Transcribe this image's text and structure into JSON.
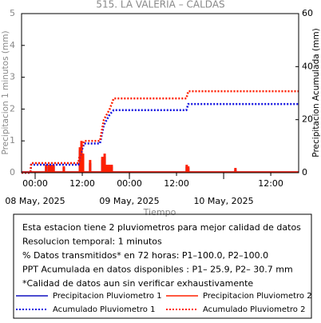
{
  "chart_data": {
    "type": "bar",
    "title": "515. LA VALERIA – CALDAS",
    "y_label": "Precipitacion 1 minutos (mm)",
    "y2_label": "Precipitacion Acumulada (mm)",
    "x_label": "Tiempo",
    "xlim": [
      -3.46,
      67.1
    ],
    "xticks": [
      {
        "value": 0,
        "label": "00:00"
      },
      {
        "value": 12,
        "label": "12:00"
      },
      {
        "value": 24,
        "label": "00:00"
      },
      {
        "value": 36,
        "label": "12:00"
      },
      {
        "value": 60,
        "label": "12:00"
      }
    ],
    "date_ticks": [
      {
        "value": 0,
        "label": "08 May, 2025"
      },
      {
        "value": 24,
        "label": "09 May, 2025"
      },
      {
        "value": 48,
        "label": "10 May, 2025"
      }
    ],
    "ylim": [
      0,
      5
    ],
    "yticks": [
      0,
      1,
      2,
      3,
      4,
      5
    ],
    "y2lim": [
      0,
      60
    ],
    "y2ticks": [
      0,
      20,
      40,
      60
    ],
    "series": [
      {
        "name": "Precipitacion Pluviometro 1",
        "type": "bar",
        "color": "#1010c0",
        "linestyle": "solid",
        "x": [
          2.8,
          3.5,
          4.1,
          4.7,
          7.3,
          11.4,
          11.8,
          12.2,
          14.0,
          17.1,
          17.7,
          18.3,
          18.9,
          19.5,
          38.6,
          39.0,
          51.0
        ],
        "values": [
          0.2,
          0.2,
          0.2,
          0.2,
          0.15,
          0.7,
          0.9,
          0.5,
          0.3,
          0.4,
          0.5,
          0.2,
          0.2,
          0.2,
          0.2,
          0.15,
          0.1
        ]
      },
      {
        "name": "Precipitacion Pluviometro 2",
        "type": "bar",
        "color": "#ff2000",
        "linestyle": "solid",
        "x": [
          2.8,
          3.5,
          4.1,
          4.7,
          7.3,
          11.4,
          11.8,
          12.2,
          14.0,
          17.1,
          17.7,
          18.3,
          18.9,
          19.5,
          38.6,
          39.0,
          51.0
        ],
        "values": [
          0.25,
          0.25,
          0.25,
          0.25,
          0.2,
          0.8,
          1.0,
          0.6,
          0.4,
          0.5,
          0.6,
          0.25,
          0.25,
          0.25,
          0.25,
          0.2,
          0.15
        ]
      },
      {
        "name": "Acumulado Pluviometro 1",
        "type": "line",
        "axis": "y2",
        "color": "#1010e0",
        "linestyle": "dotted",
        "x": [
          -3.46,
          -1.2,
          -1.0,
          11.0,
          11.5,
          12.5,
          16.5,
          17.5,
          19.0,
          20.0,
          38.5,
          39.0,
          67.1
        ],
        "values": [
          0,
          0,
          3,
          3,
          7,
          11,
          11,
          18,
          22,
          23.6,
          23.6,
          25.9,
          25.9
        ]
      },
      {
        "name": "Acumulado Pluviometro 2",
        "type": "line",
        "axis": "y2",
        "color": "#ff2000",
        "linestyle": "dotted",
        "x": [
          -3.46,
          -1.2,
          -1.0,
          11.0,
          11.5,
          12.5,
          16.5,
          17.5,
          19.0,
          20.0,
          38.5,
          39.0,
          67.1
        ],
        "values": [
          0,
          0,
          3.6,
          3.6,
          8,
          12,
          12,
          20,
          24,
          28,
          28,
          30.7,
          30.7
        ]
      }
    ]
  },
  "info_box": {
    "lines": [
      "Esta estacion tiene 2 pluviometros para mejor calidad de datos",
      "Resolucion temporal: 1 minutos",
      "% Datos transmitidos* en 72 horas: P1–100.0, P2–100.0",
      "PPT Acumulada en datos disponibles : P1– 25.9, P2– 30.7 mm",
      "*Calidad de datos aun sin verificar exhaustivamente"
    ]
  }
}
